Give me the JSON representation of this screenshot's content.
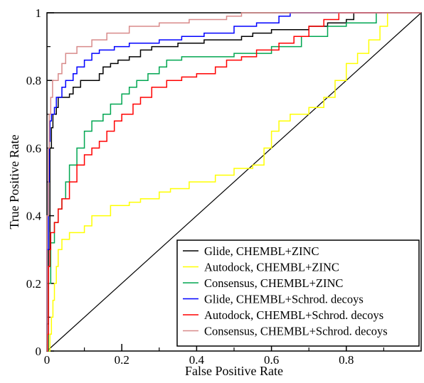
{
  "chart_data": {
    "type": "line",
    "title": "",
    "xlabel": "False Positive Rate",
    "ylabel": "True Positive Rate",
    "xlim": [
      0,
      1
    ],
    "ylim": [
      0,
      1
    ],
    "xticks": [
      "0",
      "0.2",
      "0.4",
      "0.6",
      "0.8"
    ],
    "yticks": [
      "0",
      "0.2",
      "0.4",
      "0.6",
      "0.8",
      "1"
    ],
    "grid": false,
    "legend_position": "bottom-right",
    "diagonal_reference_line": true,
    "series": [
      {
        "name": "Glide, CHEMBL+ZINC",
        "color": "#000000",
        "points": [
          [
            0,
            0
          ],
          [
            0,
            0.08
          ],
          [
            0.004,
            0.1
          ],
          [
            0.004,
            0.3
          ],
          [
            0.008,
            0.45
          ],
          [
            0.008,
            0.6
          ],
          [
            0.012,
            0.66
          ],
          [
            0.016,
            0.7
          ],
          [
            0.025,
            0.72
          ],
          [
            0.03,
            0.75
          ],
          [
            0.05,
            0.75
          ],
          [
            0.06,
            0.76
          ],
          [
            0.07,
            0.78
          ],
          [
            0.08,
            0.78
          ],
          [
            0.09,
            0.8
          ],
          [
            0.13,
            0.8
          ],
          [
            0.14,
            0.82
          ],
          [
            0.15,
            0.84
          ],
          [
            0.17,
            0.85
          ],
          [
            0.19,
            0.86
          ],
          [
            0.22,
            0.87
          ],
          [
            0.24,
            0.87
          ],
          [
            0.25,
            0.89
          ],
          [
            0.28,
            0.9
          ],
          [
            0.33,
            0.9
          ],
          [
            0.35,
            0.91
          ],
          [
            0.4,
            0.91
          ],
          [
            0.42,
            0.92
          ],
          [
            0.5,
            0.92
          ],
          [
            0.52,
            0.93
          ],
          [
            0.55,
            0.94
          ],
          [
            0.6,
            0.95
          ],
          [
            0.7,
            0.96
          ],
          [
            0.75,
            0.97
          ],
          [
            0.8,
            0.98
          ],
          [
            0.82,
            1
          ],
          [
            1,
            1
          ]
        ]
      },
      {
        "name": "Autodock, CHEMBL+ZINC",
        "color": "#ffff00",
        "points": [
          [
            0,
            0
          ],
          [
            0.008,
            0.05
          ],
          [
            0.012,
            0.1
          ],
          [
            0.016,
            0.15
          ],
          [
            0.02,
            0.2
          ],
          [
            0.025,
            0.25
          ],
          [
            0.03,
            0.3
          ],
          [
            0.04,
            0.33
          ],
          [
            0.06,
            0.35
          ],
          [
            0.1,
            0.37
          ],
          [
            0.12,
            0.4
          ],
          [
            0.17,
            0.43
          ],
          [
            0.22,
            0.44
          ],
          [
            0.25,
            0.45
          ],
          [
            0.3,
            0.47
          ],
          [
            0.33,
            0.48
          ],
          [
            0.38,
            0.5
          ],
          [
            0.45,
            0.52
          ],
          [
            0.5,
            0.54
          ],
          [
            0.55,
            0.55
          ],
          [
            0.58,
            0.6
          ],
          [
            0.6,
            0.65
          ],
          [
            0.62,
            0.68
          ],
          [
            0.65,
            0.7
          ],
          [
            0.7,
            0.72
          ],
          [
            0.74,
            0.75
          ],
          [
            0.77,
            0.8
          ],
          [
            0.8,
            0.85
          ],
          [
            0.83,
            0.88
          ],
          [
            0.86,
            0.92
          ],
          [
            0.89,
            0.96
          ],
          [
            0.91,
            1
          ],
          [
            1,
            1
          ]
        ]
      },
      {
        "name": "Consensus, CHEMBL+ZINC",
        "color": "#00a651",
        "points": [
          [
            0,
            0
          ],
          [
            0.004,
            0.05
          ],
          [
            0.004,
            0.2
          ],
          [
            0.01,
            0.32
          ],
          [
            0.02,
            0.38
          ],
          [
            0.03,
            0.42
          ],
          [
            0.04,
            0.45
          ],
          [
            0.05,
            0.5
          ],
          [
            0.06,
            0.55
          ],
          [
            0.08,
            0.6
          ],
          [
            0.1,
            0.65
          ],
          [
            0.12,
            0.68
          ],
          [
            0.15,
            0.7
          ],
          [
            0.17,
            0.73
          ],
          [
            0.2,
            0.76
          ],
          [
            0.22,
            0.78
          ],
          [
            0.24,
            0.8
          ],
          [
            0.27,
            0.82
          ],
          [
            0.3,
            0.84
          ],
          [
            0.32,
            0.86
          ],
          [
            0.36,
            0.87
          ],
          [
            0.45,
            0.87
          ],
          [
            0.5,
            0.88
          ],
          [
            0.6,
            0.9
          ],
          [
            0.68,
            0.93
          ],
          [
            0.75,
            0.96
          ],
          [
            0.8,
            0.97
          ],
          [
            0.88,
            1
          ],
          [
            1,
            1
          ]
        ]
      },
      {
        "name": "Glide, CHEMBL+Schrod. decoys",
        "color": "#0000ff",
        "points": [
          [
            0,
            0
          ],
          [
            0,
            0.3
          ],
          [
            0.004,
            0.5
          ],
          [
            0.006,
            0.62
          ],
          [
            0.008,
            0.68
          ],
          [
            0.012,
            0.7
          ],
          [
            0.02,
            0.72
          ],
          [
            0.025,
            0.75
          ],
          [
            0.04,
            0.78
          ],
          [
            0.05,
            0.8
          ],
          [
            0.07,
            0.82
          ],
          [
            0.08,
            0.84
          ],
          [
            0.1,
            0.86
          ],
          [
            0.12,
            0.88
          ],
          [
            0.14,
            0.89
          ],
          [
            0.18,
            0.9
          ],
          [
            0.22,
            0.91
          ],
          [
            0.3,
            0.92
          ],
          [
            0.36,
            0.93
          ],
          [
            0.42,
            0.94
          ],
          [
            0.5,
            0.96
          ],
          [
            0.56,
            0.97
          ],
          [
            0.62,
            0.99
          ],
          [
            0.65,
            1
          ],
          [
            1,
            1
          ]
        ]
      },
      {
        "name": "Autodock, CHEMBL+Schrod. decoys",
        "color": "#ff0000",
        "points": [
          [
            0,
            0
          ],
          [
            0.002,
            0.05
          ],
          [
            0.004,
            0.25
          ],
          [
            0.008,
            0.3
          ],
          [
            0.01,
            0.35
          ],
          [
            0.02,
            0.38
          ],
          [
            0.03,
            0.42
          ],
          [
            0.04,
            0.45
          ],
          [
            0.06,
            0.5
          ],
          [
            0.08,
            0.55
          ],
          [
            0.1,
            0.58
          ],
          [
            0.12,
            0.6
          ],
          [
            0.14,
            0.62
          ],
          [
            0.16,
            0.65
          ],
          [
            0.18,
            0.68
          ],
          [
            0.2,
            0.7
          ],
          [
            0.23,
            0.73
          ],
          [
            0.25,
            0.75
          ],
          [
            0.28,
            0.78
          ],
          [
            0.32,
            0.8
          ],
          [
            0.36,
            0.81
          ],
          [
            0.4,
            0.82
          ],
          [
            0.45,
            0.84
          ],
          [
            0.48,
            0.86
          ],
          [
            0.52,
            0.87
          ],
          [
            0.56,
            0.89
          ],
          [
            0.62,
            0.91
          ],
          [
            0.66,
            0.93
          ],
          [
            0.7,
            0.96
          ],
          [
            0.74,
            0.98
          ],
          [
            0.78,
            1
          ],
          [
            1,
            1
          ]
        ]
      },
      {
        "name": "Consensus, CHEMBL+Schrod. decoys",
        "color": "#d88a8a",
        "points": [
          [
            0,
            0
          ],
          [
            0,
            0.4
          ],
          [
            0.004,
            0.6
          ],
          [
            0.006,
            0.7
          ],
          [
            0.01,
            0.75
          ],
          [
            0.015,
            0.8
          ],
          [
            0.03,
            0.82
          ],
          [
            0.04,
            0.85
          ],
          [
            0.05,
            0.88
          ],
          [
            0.08,
            0.9
          ],
          [
            0.12,
            0.92
          ],
          [
            0.16,
            0.94
          ],
          [
            0.22,
            0.96
          ],
          [
            0.3,
            0.97
          ],
          [
            0.38,
            0.98
          ],
          [
            0.48,
            0.99
          ],
          [
            0.52,
            1
          ],
          [
            1,
            1
          ]
        ]
      }
    ]
  }
}
